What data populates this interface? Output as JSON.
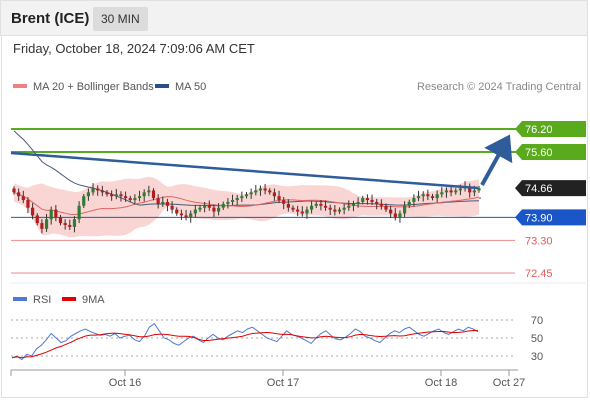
{
  "header": {
    "title": "Brent (ICE)",
    "interval": "30 MIN",
    "timestamp": "Friday, October 18, 2024 7:09:06 AM CET"
  },
  "colors": {
    "resistance": "#5aaa1e",
    "support": "#1a56c8",
    "support_light": "#e35a5a",
    "trend": "#2f5c9a",
    "price_box": "#222222",
    "bollinger_fill": "#f7c8c4",
    "ma20": "#e06666",
    "ma50": "#2b4e8a",
    "candle_up": "#2e7d32",
    "candle_down": "#b71c1c",
    "rsi": "#4f79d6",
    "rsi_ma": "#e00000"
  },
  "legend": {
    "ma20_label": "MA 20 + Bollinger Bands",
    "ma50_label": "MA 50",
    "credit": "Research © 2024 Trading Central",
    "rsi_label": "RSI",
    "rsi_ma_label": "9MA"
  },
  "chart_data": {
    "type": "candlestick",
    "price_levels": [
      {
        "value": 76.2,
        "label": "76.20",
        "kind": "resistance"
      },
      {
        "value": 75.6,
        "label": "75.60",
        "kind": "resistance"
      },
      {
        "value": 74.66,
        "label": "74.66",
        "kind": "last-price"
      },
      {
        "value": 73.9,
        "label": "73.90",
        "kind": "support"
      },
      {
        "value": 73.3,
        "label": "73.30",
        "kind": "support-light"
      },
      {
        "value": 72.45,
        "label": "72.45",
        "kind": "support-light"
      }
    ],
    "x_ticks": [
      "Oct 16",
      "Oct 17",
      "Oct 18",
      "Oct 27"
    ],
    "rsi_ticks": [
      70,
      50,
      30
    ],
    "closes": [
      74.55,
      74.45,
      74.35,
      74.15,
      73.95,
      73.75,
      73.6,
      73.85,
      74.1,
      73.9,
      73.75,
      73.7,
      73.65,
      73.85,
      74.2,
      74.45,
      74.55,
      74.65,
      74.6,
      74.55,
      74.5,
      74.45,
      74.5,
      74.45,
      74.4,
      74.35,
      74.4,
      74.45,
      74.55,
      74.6,
      74.4,
      74.25,
      74.3,
      74.2,
      74.1,
      74.0,
      73.95,
      73.9,
      74.0,
      74.1,
      74.15,
      74.2,
      74.15,
      74.05,
      74.15,
      74.25,
      74.3,
      74.35,
      74.4,
      74.45,
      74.5,
      74.55,
      74.6,
      74.65,
      74.6,
      74.55,
      74.45,
      74.35,
      74.25,
      74.15,
      74.1,
      74.05,
      74.0,
      74.1,
      74.2,
      74.25,
      74.2,
      74.15,
      74.1,
      74.05,
      74.1,
      74.15,
      74.2,
      74.25,
      74.3,
      74.4,
      74.35,
      74.3,
      74.25,
      74.2,
      74.1,
      74.0,
      73.9,
      74.0,
      74.2,
      74.3,
      74.4,
      74.45,
      74.5,
      74.45,
      74.4,
      74.5,
      74.55,
      74.6,
      74.55,
      74.6,
      74.65,
      74.7,
      74.55,
      74.6,
      74.66
    ],
    "rsi": [
      28,
      30,
      26,
      32,
      30,
      38,
      42,
      48,
      55,
      50,
      45,
      47,
      52,
      55,
      58,
      60,
      57,
      55,
      53,
      54,
      52,
      55,
      50,
      52,
      53,
      48,
      46,
      52,
      62,
      66,
      58,
      50,
      48,
      44,
      42,
      46,
      50,
      52,
      48,
      45,
      50,
      54,
      50,
      48,
      52,
      55,
      58,
      56,
      60,
      62,
      58,
      54,
      50,
      48,
      46,
      52,
      58,
      54,
      52,
      50,
      47,
      44,
      50,
      55,
      58,
      53,
      49,
      48,
      51,
      55,
      60,
      57,
      52,
      50,
      47,
      45,
      50,
      55,
      58,
      56,
      60,
      62,
      58,
      54,
      52,
      55,
      58,
      60,
      56,
      54,
      57,
      60,
      58,
      62,
      60,
      57
    ]
  }
}
